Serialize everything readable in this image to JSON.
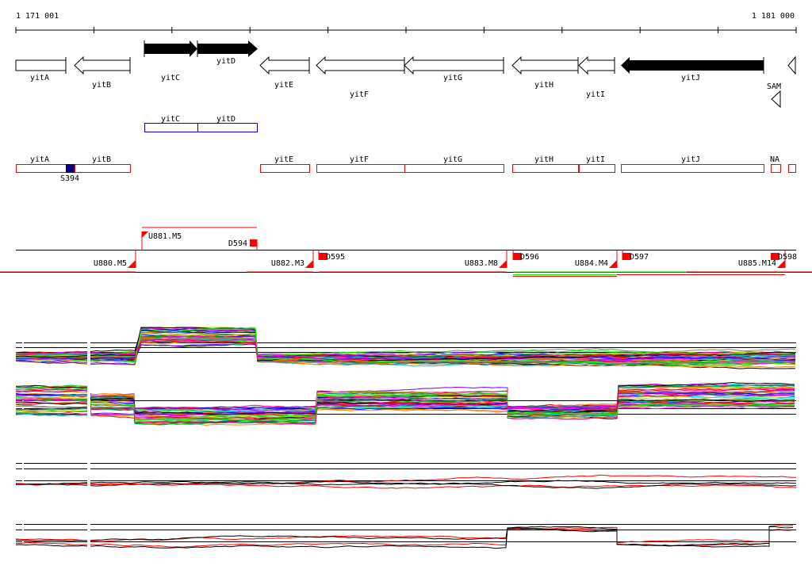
{
  "ruler": {
    "start_label": "1 171 001",
    "end_label": "1 181 000"
  },
  "genes": [
    {
      "name": "yitA",
      "strand": "none",
      "fill": "white"
    },
    {
      "name": "yitB",
      "strand": "-",
      "fill": "white"
    },
    {
      "name": "yitC",
      "strand": "+",
      "fill": "black"
    },
    {
      "name": "yitD",
      "strand": "+",
      "fill": "black"
    },
    {
      "name": "yitE",
      "strand": "-",
      "fill": "white"
    },
    {
      "name": "yitF",
      "strand": "-",
      "fill": "white"
    },
    {
      "name": "yitG",
      "strand": "-",
      "fill": "white"
    },
    {
      "name": "yitH",
      "strand": "-",
      "fill": "white"
    },
    {
      "name": "yitI",
      "strand": "-",
      "fill": "white"
    },
    {
      "name": "yitJ",
      "strand": "-",
      "fill": "black"
    }
  ],
  "riboswitch": {
    "name": "SAM"
  },
  "operon_boxes": [
    "yitC",
    "yitD"
  ],
  "annotation_boxes": [
    "yitA",
    "yitB",
    "yitE",
    "yitF",
    "yitG",
    "yitH",
    "yitI",
    "yitJ",
    "NA"
  ],
  "site_label": "S394",
  "transcription_units": {
    "upstream": [
      "U880.M5",
      "U881.M5",
      "U882.M3",
      "U883.M8",
      "U884.M4",
      "U885.M14"
    ],
    "downstream": [
      "D594",
      "D595",
      "D596",
      "D597",
      "D598"
    ]
  },
  "colors": {
    "red": "#ff0000",
    "blue": "#0000ff",
    "navy": "#000080",
    "green": "#00ff00"
  },
  "series_colors": [
    "#ff0000",
    "#00c000",
    "#0000ff",
    "#ff00ff",
    "#00cccc",
    "#cccc00",
    "#ff8000",
    "#8000ff",
    "#808080",
    "#000000",
    "#00ff00",
    "#ff0080",
    "#008080",
    "#804000"
  ]
}
